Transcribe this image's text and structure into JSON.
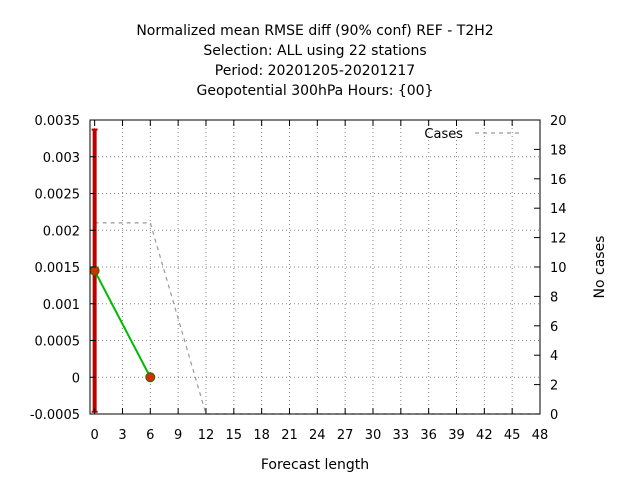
{
  "chart_data": {
    "type": "line",
    "title_lines": [
      "Normalized mean RMSE diff (90% conf) REF - T2H2",
      "Selection: ALL using    22 stations",
      "Period: 20201205-20201217",
      "Geopotential 300hPa   Hours: {00}"
    ],
    "xlabel": "Forecast length",
    "ylabel": "",
    "y2label": "No cases",
    "xlim": [
      -0.5,
      48
    ],
    "ylim": [
      -0.0005,
      0.0035
    ],
    "y2lim": [
      0,
      20
    ],
    "x_ticks": [
      0,
      3,
      6,
      9,
      12,
      15,
      18,
      21,
      24,
      27,
      30,
      33,
      36,
      39,
      42,
      45,
      48
    ],
    "y_ticks": [
      -0.0005,
      0,
      0.0005,
      0.001,
      0.0015,
      0.002,
      0.0025,
      0.003,
      0.0035
    ],
    "y_tick_labels": [
      "-0.0005",
      "0",
      "0.0005",
      "0.001",
      "0.0015",
      "0.002",
      "0.0025",
      "0.003",
      "0.0035"
    ],
    "y2_ticks": [
      0,
      2,
      4,
      6,
      8,
      10,
      12,
      14,
      16,
      18,
      20
    ],
    "grid": true,
    "legend_position": "top-right",
    "series": [
      {
        "role": "rmse_diff",
        "color": "#00bb00",
        "marker_color": "#cc3300",
        "x": [
          0,
          6
        ],
        "y": [
          0.00145,
          0.0
        ]
      },
      {
        "role": "confidence_interval",
        "color": "#bb0000",
        "x": [
          0
        ],
        "low": [
          -0.00047
        ],
        "high": [
          0.00337
        ]
      },
      {
        "name": "Cases",
        "axis": "y2",
        "color": "#999999",
        "style": "dashed",
        "x": [
          0,
          6,
          12,
          18,
          24,
          30,
          36,
          42,
          48
        ],
        "y": [
          13,
          13,
          0,
          0,
          0,
          0,
          0,
          0,
          0
        ]
      }
    ]
  }
}
